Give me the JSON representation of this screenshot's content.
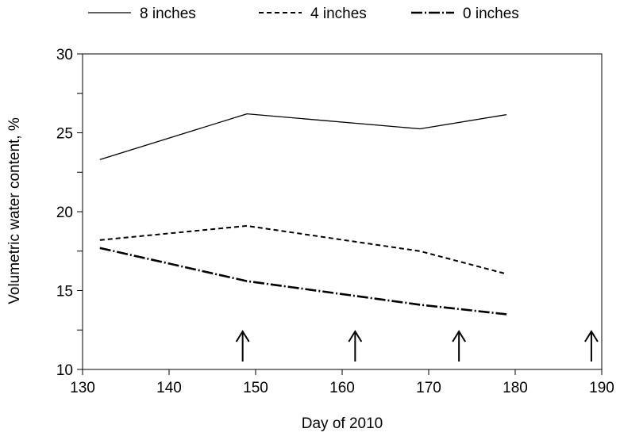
{
  "chart_data": {
    "type": "line",
    "title": "",
    "xlabel": "Day of 2010",
    "ylabel": "Volumetric water content, %",
    "xlim": [
      130,
      190
    ],
    "ylim": [
      10,
      30
    ],
    "xticks": [
      130,
      140,
      150,
      160,
      170,
      180,
      190
    ],
    "yticks": [
      10,
      15,
      20,
      25,
      30
    ],
    "grid": false,
    "legend_position": "top",
    "series": [
      {
        "name": "8 inches",
        "style": "solid",
        "x": [
          132,
          149,
          169,
          179
        ],
        "y": [
          23.3,
          26.2,
          25.25,
          26.15
        ]
      },
      {
        "name": "4 inches",
        "style": "dashed",
        "x": [
          132,
          149,
          169,
          179
        ],
        "y": [
          18.2,
          19.1,
          17.5,
          16.05
        ]
      },
      {
        "name": "0 inches",
        "style": "dash-dot",
        "x": [
          132,
          149,
          169,
          179
        ],
        "y": [
          17.7,
          15.6,
          14.1,
          13.5
        ]
      }
    ],
    "annotations": {
      "arrows_at_day": [
        148.5,
        161.5,
        173.5,
        188.8
      ]
    }
  }
}
